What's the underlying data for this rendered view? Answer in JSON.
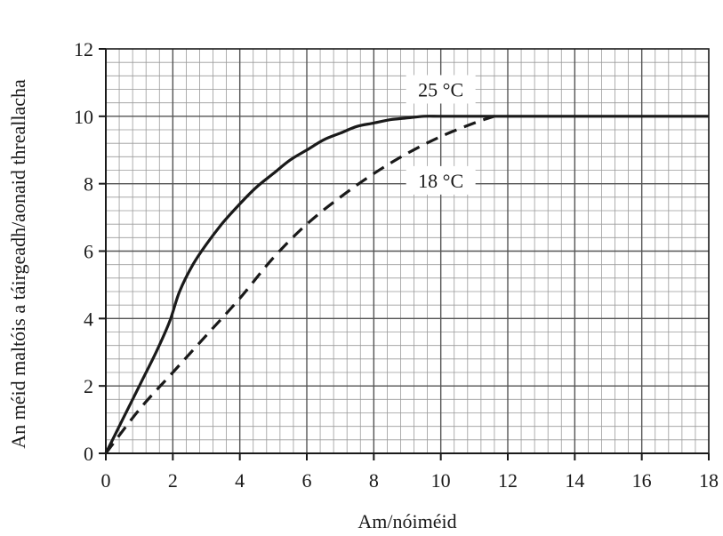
{
  "chart_data": {
    "type": "line",
    "title": "",
    "xlabel": "Am/nóiméid",
    "ylabel": "An méid maltóis a táirgeadh/aonaid threallacha",
    "xlim": [
      0,
      18
    ],
    "ylim": [
      0,
      12
    ],
    "x_ticks": [
      0,
      2,
      4,
      6,
      8,
      10,
      12,
      14,
      16,
      18
    ],
    "y_ticks": [
      0,
      2,
      4,
      6,
      8,
      10,
      12
    ],
    "x_tick_labels": [
      "0",
      "2",
      "4",
      "6",
      "8",
      "10",
      "12",
      "14",
      "16",
      "18"
    ],
    "y_tick_labels": [
      "0",
      "2",
      "4",
      "6",
      "8",
      "10",
      "12"
    ],
    "grid": true,
    "minor_grid_step": 0.4,
    "legend": "none",
    "series": [
      {
        "name": "25 °C",
        "style": "solid",
        "color": "#1a1a1a",
        "x": [
          0,
          0.5,
          1,
          1.5,
          1.9,
          2.2,
          2.6,
          3,
          3.5,
          4,
          4.5,
          5,
          5.5,
          6,
          6.5,
          7,
          7.5,
          8,
          8.5,
          9,
          9.5,
          10,
          11,
          12,
          13,
          14,
          15,
          16,
          17,
          18
        ],
        "y": [
          0,
          1.0,
          2.0,
          3.0,
          3.9,
          4.8,
          5.6,
          6.2,
          6.85,
          7.4,
          7.9,
          8.3,
          8.7,
          9.0,
          9.3,
          9.5,
          9.7,
          9.8,
          9.9,
          9.95,
          10.0,
          10.0,
          10.0,
          10.0,
          10.0,
          10.0,
          10.0,
          10.0,
          10.0,
          10.0
        ]
      },
      {
        "name": "18 °C",
        "style": "dashed",
        "color": "#1a1a1a",
        "x": [
          0,
          1,
          2,
          3,
          4,
          5,
          6,
          7,
          8,
          9,
          10,
          11,
          11.6
        ],
        "y": [
          0,
          1.3,
          2.4,
          3.5,
          4.6,
          5.8,
          6.8,
          7.6,
          8.3,
          8.9,
          9.4,
          9.8,
          10.0
        ]
      }
    ],
    "annotations": [
      {
        "text": "25 °C",
        "x": 10.0,
        "y": 10.8
      },
      {
        "text": "18 °C",
        "x": 10.0,
        "y": 8.1
      }
    ]
  }
}
